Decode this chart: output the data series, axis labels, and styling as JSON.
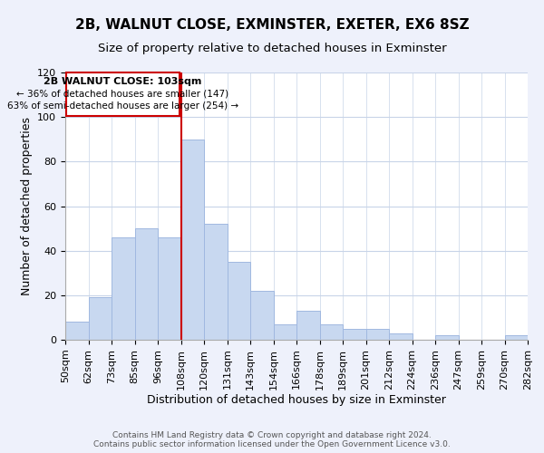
{
  "title": "2B, WALNUT CLOSE, EXMINSTER, EXETER, EX6 8SZ",
  "subtitle": "Size of property relative to detached houses in Exminster",
  "xlabel": "Distribution of detached houses by size in Exminster",
  "ylabel": "Number of detached properties",
  "bar_color": "#c8d8f0",
  "bar_edge_color": "#a0b8e0",
  "bins": [
    "50sqm",
    "62sqm",
    "73sqm",
    "85sqm",
    "96sqm",
    "108sqm",
    "120sqm",
    "131sqm",
    "143sqm",
    "154sqm",
    "166sqm",
    "178sqm",
    "189sqm",
    "201sqm",
    "212sqm",
    "224sqm",
    "236sqm",
    "247sqm",
    "259sqm",
    "270sqm",
    "282sqm"
  ],
  "values": [
    8,
    19,
    46,
    50,
    46,
    90,
    52,
    35,
    22,
    7,
    13,
    7,
    5,
    5,
    3,
    0,
    2,
    0,
    0,
    2
  ],
  "ylim": [
    0,
    120
  ],
  "yticks": [
    0,
    20,
    40,
    60,
    80,
    100,
    120
  ],
  "marker_label": "2B WALNUT CLOSE: 103sqm",
  "annotation_line1": "← 36% of detached houses are smaller (147)",
  "annotation_line2": "63% of semi-detached houses are larger (254) →",
  "footer1": "Contains HM Land Registry data © Crown copyright and database right 2024.",
  "footer2": "Contains public sector information licensed under the Open Government Licence v3.0.",
  "background_color": "#eef1fb",
  "plot_bg_color": "#ffffff",
  "grid_color": "#c8d4e8",
  "box_color": "#cc0000",
  "title_fontsize": 11,
  "subtitle_fontsize": 9.5,
  "label_fontsize": 9,
  "tick_fontsize": 8,
  "footer_fontsize": 6.5
}
